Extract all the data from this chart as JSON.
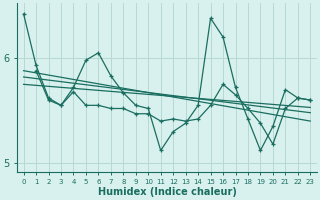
{
  "xlabel": "Humidex (Indice chaleur)",
  "bg_color": "#d8f0ee",
  "grid_color": "#b8d8d4",
  "line_color": "#1a6e60",
  "xlim": [
    -0.5,
    23.5
  ],
  "ylim": [
    4.92,
    6.52
  ],
  "yticks": [
    5,
    6
  ],
  "xtick_labels": [
    "0",
    "1",
    "2",
    "3",
    "4",
    "5",
    "6",
    "7",
    "8",
    "9",
    "10",
    "11",
    "12",
    "13",
    "14",
    "15",
    "16",
    "17",
    "18",
    "19",
    "20",
    "21",
    "22",
    "23"
  ],
  "series1_x": [
    0,
    1,
    2,
    3,
    4,
    5,
    6,
    7,
    8,
    9,
    10,
    11,
    12,
    13,
    14,
    15,
    16,
    17,
    18,
    19,
    20,
    21,
    22,
    23
  ],
  "series1_y": [
    6.42,
    5.93,
    5.62,
    5.55,
    5.72,
    5.98,
    6.05,
    5.83,
    5.67,
    5.55,
    5.52,
    5.12,
    5.3,
    5.38,
    5.55,
    6.38,
    6.2,
    5.72,
    5.42,
    5.12,
    5.35,
    5.7,
    5.62,
    5.6
  ],
  "series2_x": [
    1,
    2,
    3,
    4,
    5,
    6,
    7,
    8,
    9,
    10,
    11,
    12,
    13,
    14,
    15,
    16,
    17,
    18,
    19,
    20,
    21,
    22,
    23
  ],
  "series2_y": [
    5.88,
    5.6,
    5.55,
    5.68,
    5.55,
    5.55,
    5.52,
    5.52,
    5.47,
    5.47,
    5.4,
    5.42,
    5.4,
    5.42,
    5.55,
    5.75,
    5.65,
    5.52,
    5.38,
    5.18,
    5.52,
    5.62,
    5.6
  ],
  "trend1_x": [
    0,
    23
  ],
  "trend1_y": [
    5.88,
    5.4
  ],
  "trend2_x": [
    0,
    23
  ],
  "trend2_y": [
    5.82,
    5.48
  ],
  "trend3_x": [
    0,
    23
  ],
  "trend3_y": [
    5.75,
    5.53
  ]
}
